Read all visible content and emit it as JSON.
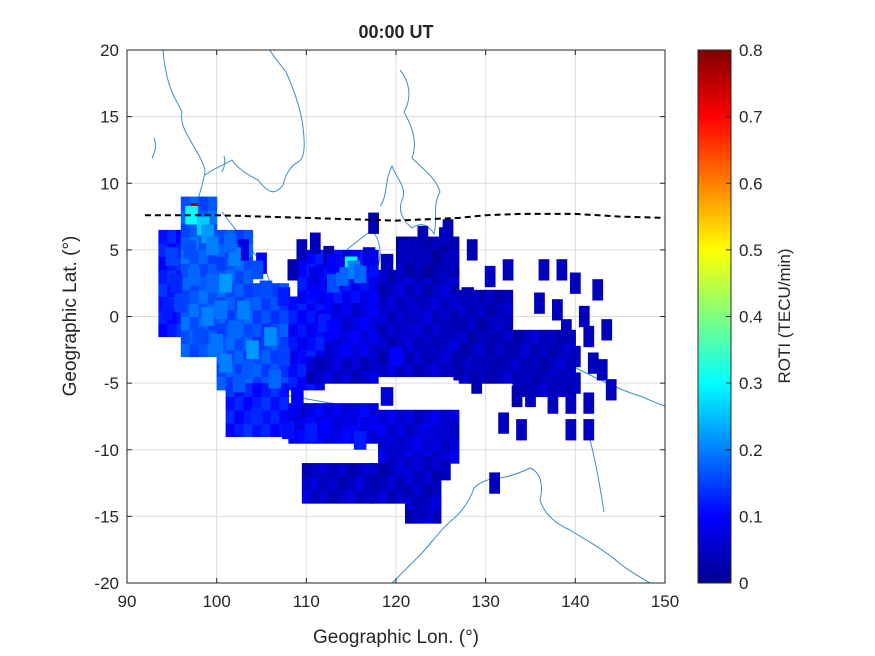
{
  "title": "00:00 UT",
  "xlabel": "Geographic Lon. (°)",
  "ylabel": "Geographic Lat. (°)",
  "colorbar": {
    "label": "ROTI (TECU/min)",
    "range": [
      0,
      0.8
    ],
    "ticks": [
      "0",
      "0.1",
      "0.2",
      "0.3",
      "0.4",
      "0.5",
      "0.6",
      "0.7",
      "0.8"
    ]
  },
  "axes": {
    "xlim": [
      90,
      150
    ],
    "ylim": [
      -20,
      20
    ],
    "xticks": [
      "90",
      "100",
      "110",
      "120",
      "130",
      "140",
      "150"
    ],
    "yticks": [
      "20",
      "15",
      "10",
      "5",
      "0",
      "-5",
      "-10",
      "-15",
      "-20"
    ],
    "grid": true
  },
  "colors": {
    "coastline": "#3a8fc4",
    "equator_line": "#000000",
    "grid": "#dcdcdc"
  },
  "chart_data": {
    "type": "heatmap",
    "description_units": "lon/lat in degrees, value = ROTI TECU/min",
    "magnetic_equator": {
      "style": "dashed",
      "lon": [
        92,
        100,
        110,
        120,
        127,
        130,
        134,
        140,
        145,
        150
      ],
      "lat": [
        7.6,
        7.6,
        7.4,
        7.2,
        7.4,
        7.6,
        7.7,
        7.7,
        7.5,
        7.4
      ]
    },
    "bands": [
      {
        "lon": [
          93.5,
          96
        ],
        "lat": [
          -1.5,
          6
        ],
        "value": 0.12
      },
      {
        "lon": [
          96,
          100
        ],
        "lat": [
          -3,
          9
        ],
        "value": 0.17
      },
      {
        "lon": [
          100,
          104
        ],
        "lat": [
          -5.5,
          6
        ],
        "value": 0.16
      },
      {
        "lon": [
          104,
          108
        ],
        "lat": [
          -5.5,
          2
        ],
        "value": 0.15
      },
      {
        "lon": [
          108,
          112
        ],
        "lat": [
          -5.5,
          1
        ],
        "value": 0.1
      },
      {
        "lon": [
          101,
          108
        ],
        "lat": [
          -9,
          -5.5
        ],
        "value": 0.12
      },
      {
        "lon": [
          108,
          118
        ],
        "lat": [
          -9.5,
          -6.5
        ],
        "value": 0.08
      },
      {
        "lon": [
          118,
          127
        ],
        "lat": [
          -11,
          -7
        ],
        "value": 0.07
      },
      {
        "lon": [
          109.5,
          117
        ],
        "lat": [
          -14,
          -11.5
        ],
        "value": 0.05
      },
      {
        "lon": [
          117,
          124
        ],
        "lat": [
          -14,
          -11.5
        ],
        "value": 0.05
      },
      {
        "lon": [
          121,
          124.5
        ],
        "lat": [
          -15.5,
          -11
        ],
        "value": 0.05
      },
      {
        "lon": [
          110,
          118
        ],
        "lat": [
          -5,
          -3
        ],
        "value": 0.06
      },
      {
        "lon": [
          109,
          118
        ],
        "lat": [
          1,
          5
        ],
        "value": 0.1
      },
      {
        "lon": [
          112,
          120
        ],
        "lat": [
          -3,
          1
        ],
        "value": 0.08
      },
      {
        "lon": [
          118,
          127
        ],
        "lat": [
          -4.5,
          3
        ],
        "value": 0.05
      },
      {
        "lon": [
          120,
          127
        ],
        "lat": [
          3,
          6
        ],
        "value": 0.04
      },
      {
        "lon": [
          127,
          133
        ],
        "lat": [
          -5,
          2
        ],
        "value": 0.05
      },
      {
        "lon": [
          133,
          140
        ],
        "lat": [
          -6,
          -1
        ],
        "value": 0.05
      }
    ],
    "cells": [
      {
        "lon": 97.5,
        "lat": 8,
        "value": 0.78
      },
      {
        "lon": 97.2,
        "lat": 7.6,
        "value": 0.3
      },
      {
        "lon": 98.5,
        "lat": 6.8,
        "value": 0.26
      },
      {
        "lon": 99,
        "lat": 6.2,
        "value": 0.22
      },
      {
        "lon": 115,
        "lat": 3.8,
        "value": 0.3
      },
      {
        "lon": 115.3,
        "lat": 3.5,
        "value": 0.2
      },
      {
        "lon": 116,
        "lat": 3.2,
        "value": 0.18
      },
      {
        "lon": 113,
        "lat": 2.5,
        "value": 0.16
      },
      {
        "lon": 101,
        "lat": 2.5,
        "value": 0.22
      },
      {
        "lon": 102,
        "lat": 4.5,
        "value": 0.2
      },
      {
        "lon": 103,
        "lat": 0.5,
        "value": 0.2
      },
      {
        "lon": 106,
        "lat": -1.5,
        "value": 0.21
      },
      {
        "lon": 104,
        "lat": -2.5,
        "value": 0.22
      },
      {
        "lon": 101,
        "lat": -3.5,
        "value": 0.2
      },
      {
        "lon": 97.5,
        "lat": 3,
        "value": 0.18
      },
      {
        "lon": 99,
        "lat": 0,
        "value": 0.2
      },
      {
        "lon": 110.5,
        "lat": -8.7,
        "value": 0.12
      },
      {
        "lon": 116,
        "lat": -9.3,
        "value": 0.12
      },
      {
        "lon": 99.5,
        "lat": 5.3,
        "value": 0.2
      },
      {
        "lon": 100,
        "lat": -2,
        "value": 0.19
      },
      {
        "lon": 106.5,
        "lat": -4.7,
        "value": 0.18
      },
      {
        "lon": 103.5,
        "lat": -4,
        "value": 0.17
      },
      {
        "lon": 95,
        "lat": 4.5,
        "value": 0.15
      },
      {
        "lon": 112,
        "lat": -0.5,
        "value": 0.12
      },
      {
        "lon": 120,
        "lat": -3,
        "value": 0.1
      },
      {
        "lon": 96,
        "lat": 1,
        "value": 0.15
      },
      {
        "lon": 101.5,
        "lat": 5.5,
        "value": 0.18
      },
      {
        "lon": 105.5,
        "lat": 2,
        "value": 0.16
      },
      {
        "lon": 100.5,
        "lat": 0.5,
        "value": 0.19
      },
      {
        "lon": 107.5,
        "lat": -3,
        "value": 0.15
      },
      {
        "lon": 102.5,
        "lat": -5,
        "value": 0.17
      },
      {
        "lon": 99.5,
        "lat": 2.5,
        "value": 0.18
      },
      {
        "lon": 114,
        "lat": 3,
        "value": 0.18
      },
      {
        "lon": 113,
        "lat": -1,
        "value": 0.1
      },
      {
        "lon": 104.5,
        "lat": -7.5,
        "value": 0.13
      },
      {
        "lon": 108,
        "lat": -8.5,
        "value": 0.11
      },
      {
        "lon": 112,
        "lat": -8.5,
        "value": 0.1
      },
      {
        "lon": 124,
        "lat": -9,
        "value": 0.07
      },
      {
        "lon": 126,
        "lat": -8.5,
        "value": 0.06
      },
      {
        "lon": 112,
        "lat": -12.5,
        "value": 0.05
      },
      {
        "lon": 113,
        "lat": 4,
        "value": 0.1
      },
      {
        "lon": 111,
        "lat": 2,
        "value": 0.1
      },
      {
        "lon": 117,
        "lat": 4.5,
        "value": 0.08
      },
      {
        "lon": 119,
        "lat": 4,
        "value": 0.05
      },
      {
        "lon": 121,
        "lat": 5,
        "value": 0.05
      },
      {
        "lon": 123,
        "lat": 4.5,
        "value": 0.05
      },
      {
        "lon": 125.5,
        "lat": 6,
        "value": 0.05
      },
      {
        "lon": 126,
        "lat": 4,
        "value": 0.05
      },
      {
        "lon": 128,
        "lat": 1.5,
        "value": 0.05
      },
      {
        "lon": 130.5,
        "lat": -2,
        "value": 0.04
      },
      {
        "lon": 132,
        "lat": 0,
        "value": 0.05
      },
      {
        "lon": 135,
        "lat": -4,
        "value": 0.05
      },
      {
        "lon": 137,
        "lat": -2,
        "value": 0.05
      },
      {
        "lon": 138,
        "lat": -5,
        "value": 0.05
      },
      {
        "lon": 121,
        "lat": -1,
        "value": 0.06
      },
      {
        "lon": 124,
        "lat": -2.5,
        "value": 0.05
      },
      {
        "lon": 126,
        "lat": -1,
        "value": 0.05
      },
      {
        "lon": 111,
        "lat": 3,
        "value": 0.08
      },
      {
        "lon": 122,
        "lat": 0.5,
        "value": 0.06
      },
      {
        "lon": 129,
        "lat": -3.5,
        "value": 0.05
      },
      {
        "lon": 131,
        "lat": -4,
        "value": 0.04
      },
      {
        "lon": 133,
        "lat": -2.5,
        "value": 0.04
      },
      {
        "lon": 120,
        "lat": -10,
        "value": 0.06
      },
      {
        "lon": 117,
        "lat": -13,
        "value": 0.05
      },
      {
        "lon": 123,
        "lat": -14.5,
        "value": 0.05
      },
      {
        "lon": 119,
        "lat": -6,
        "value": 0.07
      },
      {
        "lon": 115,
        "lat": -7.5,
        "value": 0.08
      },
      {
        "lon": 109,
        "lat": -6,
        "value": 0.09
      },
      {
        "lon": 104.5,
        "lat": 3.5,
        "value": 0.16
      },
      {
        "lon": 107.5,
        "lat": 1.5,
        "value": 0.12
      },
      {
        "lon": 97,
        "lat": 5,
        "value": 0.16
      },
      {
        "lon": 95.5,
        "lat": 2.5,
        "value": 0.13
      },
      {
        "lon": 98,
        "lat": -1.5,
        "value": 0.16
      },
      {
        "lon": 102,
        "lat": -1,
        "value": 0.18
      }
    ],
    "isolated_cells": [
      {
        "lon": 103,
        "lat": 5,
        "value": 0.08
      },
      {
        "lon": 105,
        "lat": 4,
        "value": 0.1
      },
      {
        "lon": 109.5,
        "lat": 5,
        "value": 0.05
      },
      {
        "lon": 108.5,
        "lat": 3.5,
        "value": 0.04
      },
      {
        "lon": 111,
        "lat": 5.5,
        "value": 0.05
      },
      {
        "lon": 112.5,
        "lat": 4.5,
        "value": 0.04
      },
      {
        "lon": 117.5,
        "lat": 7,
        "value": 0.04
      },
      {
        "lon": 123,
        "lat": 6,
        "value": 0.04
      },
      {
        "lon": 125.8,
        "lat": 6.5,
        "value": 0.04
      },
      {
        "lon": 128.5,
        "lat": 5,
        "value": 0.04
      },
      {
        "lon": 130.5,
        "lat": 3,
        "value": 0.05
      },
      {
        "lon": 132.5,
        "lat": 3.5,
        "value": 0.05
      },
      {
        "lon": 136.5,
        "lat": 3.5,
        "value": 0.05
      },
      {
        "lon": 138.5,
        "lat": 3.5,
        "value": 0.05
      },
      {
        "lon": 140,
        "lat": 2.5,
        "value": 0.05
      },
      {
        "lon": 142.5,
        "lat": 2,
        "value": 0.05
      },
      {
        "lon": 136,
        "lat": 1,
        "value": 0.05
      },
      {
        "lon": 138,
        "lat": 0.5,
        "value": 0.05
      },
      {
        "lon": 141,
        "lat": 0,
        "value": 0.05
      },
      {
        "lon": 139,
        "lat": -1,
        "value": 0.05
      },
      {
        "lon": 141.5,
        "lat": -1.5,
        "value": 0.05
      },
      {
        "lon": 143.5,
        "lat": -1,
        "value": 0.05
      },
      {
        "lon": 140,
        "lat": -3,
        "value": 0.05
      },
      {
        "lon": 142,
        "lat": -3.5,
        "value": 0.05
      },
      {
        "lon": 140,
        "lat": -5,
        "value": 0.05
      },
      {
        "lon": 143,
        "lat": -4,
        "value": 0.05
      },
      {
        "lon": 137.5,
        "lat": -6.5,
        "value": 0.05
      },
      {
        "lon": 135,
        "lat": -6,
        "value": 0.05
      },
      {
        "lon": 133.5,
        "lat": -6,
        "value": 0.04
      },
      {
        "lon": 132,
        "lat": -8,
        "value": 0.05
      },
      {
        "lon": 134,
        "lat": -8.5,
        "value": 0.05
      },
      {
        "lon": 139.5,
        "lat": -6.5,
        "value": 0.05
      },
      {
        "lon": 141.5,
        "lat": -6.5,
        "value": 0.05
      },
      {
        "lon": 139.5,
        "lat": -8.5,
        "value": 0.05
      },
      {
        "lon": 141.5,
        "lat": -8.5,
        "value": 0.05
      },
      {
        "lon": 144,
        "lat": -5.5,
        "value": 0.05
      },
      {
        "lon": 131,
        "lat": -12.5,
        "value": 0.05
      },
      {
        "lon": 128,
        "lat": 0.5,
        "value": 0.05
      },
      {
        "lon": 129,
        "lat": -5,
        "value": 0.04
      },
      {
        "lon": 127,
        "lat": -4,
        "value": 0.04
      },
      {
        "lon": 94.5,
        "lat": 0.5,
        "value": 0.12
      },
      {
        "lon": 125.5,
        "lat": -11.5,
        "value": 0.05
      }
    ]
  }
}
